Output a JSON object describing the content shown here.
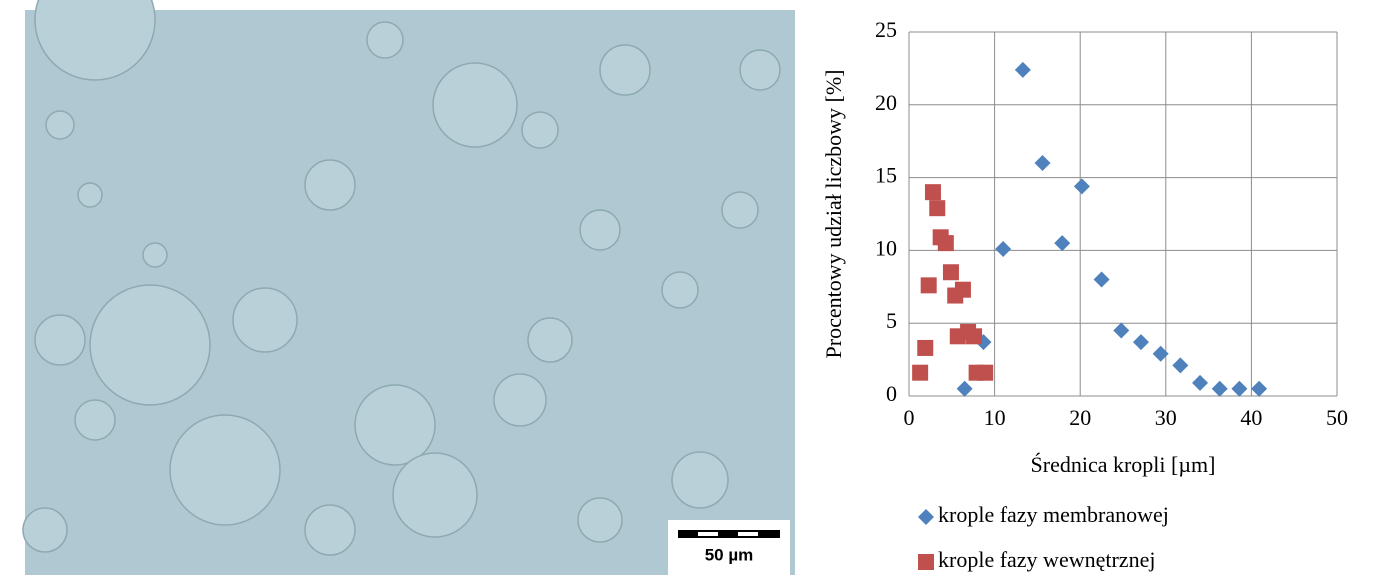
{
  "image": {
    "scale_bar_label": "50 µm"
  },
  "chart_data": {
    "type": "scatter",
    "xlabel": "Średnica kropli [µm]",
    "ylabel": "Procentowy udział liczbowy [%]",
    "xlim": [
      0,
      50
    ],
    "xticks": [
      0,
      10,
      20,
      30,
      40,
      50
    ],
    "ylim": [
      0,
      25
    ],
    "yticks": [
      0,
      5,
      10,
      15,
      20,
      25
    ],
    "grid": true,
    "legend": "bottom",
    "series": [
      {
        "name": "krople fazy membranowej",
        "color": "#4f81bd",
        "marker": "diamond",
        "x": [
          6.5,
          8.7,
          11,
          13.3,
          15.6,
          17.9,
          20.2,
          22.5,
          24.8,
          27.1,
          29.4,
          31.7,
          34,
          36.3,
          38.6,
          40.9
        ],
        "values": [
          0.5,
          3.7,
          10.1,
          22.4,
          16.0,
          10.5,
          14.4,
          8.0,
          4.5,
          3.7,
          2.9,
          2.1,
          0.9,
          0.5,
          0.5,
          0.5
        ]
      },
      {
        "name": "krople fazy wewnętrznej",
        "color": "#c0504d",
        "marker": "square",
        "x": [
          1.3,
          1.9,
          2.3,
          2.8,
          3.3,
          3.7,
          4.3,
          4.9,
          5.4,
          6.3,
          5.7,
          6.9,
          7.6,
          7.9,
          8.9
        ],
        "values": [
          1.6,
          3.3,
          7.6,
          14.0,
          12.9,
          10.9,
          10.5,
          8.5,
          6.9,
          7.3,
          4.1,
          4.4,
          4.1,
          1.6,
          1.6
        ]
      }
    ]
  }
}
